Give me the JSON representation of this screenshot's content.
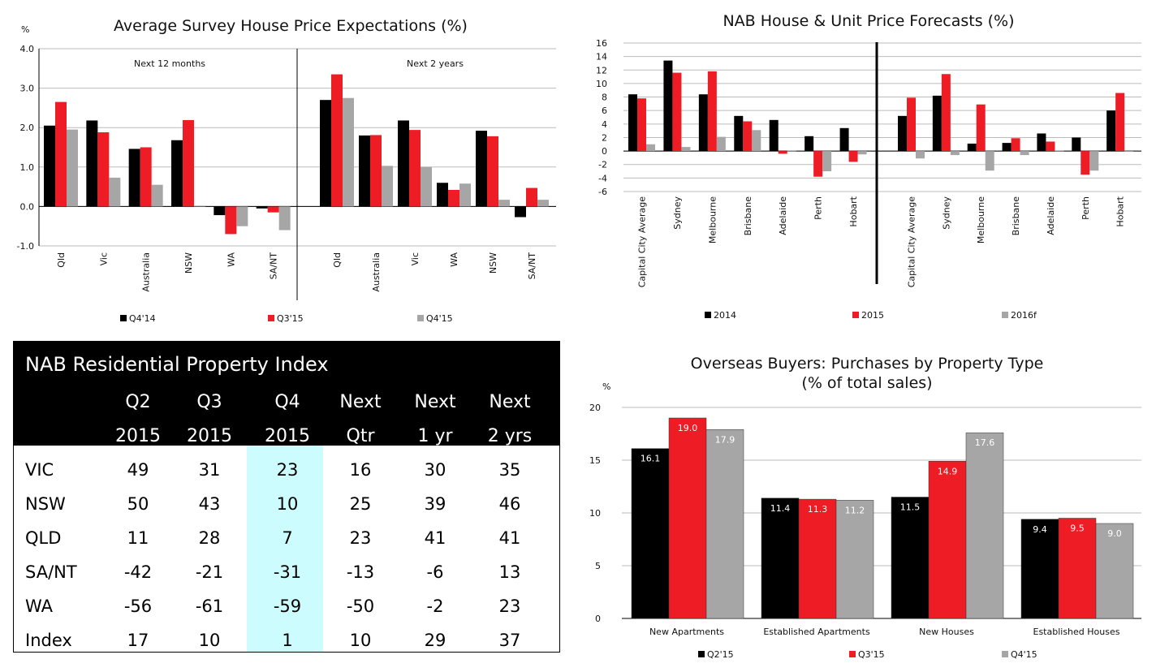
{
  "colors": {
    "black": "#000000",
    "red": "#ee1c25",
    "grey": "#a6a6a6",
    "highlight": "#ccfcfd"
  },
  "chart_data": [
    {
      "type": "bar",
      "title": "Average Survey House Price Expectations (%)",
      "unit_label": "%",
      "ylim": [
        -1.0,
        4.0
      ],
      "yticks": [
        "4.0",
        "3.0",
        "2.0",
        "1.0",
        "0.0",
        "-1.0"
      ],
      "ytick_values": [
        4,
        3,
        2,
        1,
        0,
        -1
      ],
      "legend_position": "bottom",
      "panels": [
        {
          "label": "Next 12 months",
          "categories": [
            "Qld",
            "Vic",
            "Australia",
            "NSW",
            "WA",
            "SA/NT"
          ],
          "series": [
            {
              "name": "Q4'14",
              "values": [
                2.05,
                2.18,
                1.46,
                1.68,
                -0.22,
                -0.05
              ]
            },
            {
              "name": "Q3'15",
              "values": [
                2.65,
                1.88,
                1.5,
                2.19,
                -0.7,
                -0.15
              ]
            },
            {
              "name": "Q4'15",
              "values": [
                1.95,
                0.73,
                0.55,
                0.02,
                -0.5,
                -0.6
              ]
            }
          ]
        },
        {
          "label": "Next 2 years",
          "categories": [
            "Qld",
            "Australia",
            "Vic",
            "WA",
            "NSW",
            "SA/NT"
          ],
          "series": [
            {
              "name": "Q4'14",
              "values": [
                2.7,
                1.8,
                2.18,
                0.6,
                1.92,
                -0.27
              ]
            },
            {
              "name": "Q3'15",
              "values": [
                3.35,
                1.81,
                1.94,
                0.42,
                1.78,
                0.47
              ]
            },
            {
              "name": "Q4'15",
              "values": [
                2.75,
                1.03,
                1.0,
                0.58,
                0.17,
                0.17
              ]
            }
          ]
        }
      ]
    },
    {
      "type": "bar",
      "title": "NAB House & Unit Price Forecasts (%)",
      "ylim": [
        -6,
        16
      ],
      "yticks": [
        "16",
        "14",
        "12",
        "10",
        "8",
        "6",
        "4",
        "2",
        "0",
        "-2",
        "-4",
        "-6"
      ],
      "ytick_values": [
        16,
        14,
        12,
        10,
        8,
        6,
        4,
        2,
        0,
        -2,
        -4,
        -6
      ],
      "legend_position": "bottom",
      "panels": [
        {
          "categories": [
            "Capital City Average",
            "Sydney",
            "Melbourne",
            "Brisbane",
            "Adelaide",
            "Perth",
            "Hobart"
          ],
          "series": [
            {
              "name": "2014",
              "values": [
                8.4,
                13.4,
                8.4,
                5.2,
                4.6,
                2.2,
                3.4
              ]
            },
            {
              "name": "2015",
              "values": [
                7.8,
                11.6,
                11.8,
                4.4,
                -0.4,
                -3.8,
                -1.6
              ]
            },
            {
              "name": "2016f",
              "values": [
                1.0,
                0.6,
                2.1,
                3.1,
                0.1,
                -3.0,
                -0.5
              ]
            }
          ]
        },
        {
          "categories": [
            "Capital City Average",
            "Sydney",
            "Melbourne",
            "Brisbane",
            "Adelaide",
            "Perth",
            "Hobart"
          ],
          "series": [
            {
              "name": "2014",
              "values": [
                5.2,
                8.2,
                1.1,
                1.2,
                2.6,
                2.0,
                6.0
              ]
            },
            {
              "name": "2015",
              "values": [
                7.9,
                11.4,
                6.9,
                1.9,
                1.4,
                -3.5,
                8.6
              ]
            },
            {
              "name": "2016f",
              "values": [
                -1.1,
                -0.6,
                -2.9,
                -0.6,
                0.1,
                -2.9,
                0.0
              ]
            }
          ]
        }
      ]
    },
    {
      "type": "bar",
      "title": "Overseas Buyers: Purchases by Property Type",
      "subtitle": "(% of total sales)",
      "unit_label": "%",
      "ylim": [
        0,
        20
      ],
      "yticks": [
        "20",
        "15",
        "10",
        "5",
        "0"
      ],
      "ytick_values": [
        20,
        15,
        10,
        5,
        0
      ],
      "legend_position": "bottom",
      "categories": [
        "New Apartments",
        "Established Apartments",
        "New Houses",
        "Established Houses"
      ],
      "series": [
        {
          "name": "Q2'15",
          "values": [
            16.1,
            11.4,
            11.5,
            9.4
          ],
          "labels": [
            "16.1",
            "11.4",
            "11.5",
            "9.4"
          ]
        },
        {
          "name": "Q3'15",
          "values": [
            19.0,
            11.3,
            14.9,
            9.5
          ],
          "labels": [
            "19.0",
            "11.3",
            "14.9",
            "9.5"
          ]
        },
        {
          "name": "Q4'15",
          "values": [
            17.9,
            11.2,
            17.6,
            9.0
          ],
          "labels": [
            "17.9",
            "11.2",
            "17.6",
            "9.0"
          ]
        }
      ]
    }
  ],
  "table": {
    "title": "NAB Residential Property Index",
    "columns": [
      {
        "top": "Q2",
        "bottom": "2015"
      },
      {
        "top": "Q3",
        "bottom": "2015"
      },
      {
        "top": "Q4",
        "bottom": "2015"
      },
      {
        "top": "Next",
        "bottom": "Qtr"
      },
      {
        "top": "Next",
        "bottom": "1 yr"
      },
      {
        "top": "Next",
        "bottom": "2 yrs"
      }
    ],
    "rows": [
      {
        "name": "VIC",
        "values": [
          "49",
          "31",
          "23",
          "16",
          "30",
          "35"
        ]
      },
      {
        "name": "NSW",
        "values": [
          "50",
          "43",
          "10",
          "25",
          "39",
          "46"
        ]
      },
      {
        "name": "QLD",
        "values": [
          "11",
          "28",
          "7",
          "23",
          "41",
          "41"
        ]
      },
      {
        "name": "SA/NT",
        "values": [
          "-42",
          "-21",
          "-31",
          "-13",
          "-6",
          "13"
        ]
      },
      {
        "name": "WA",
        "values": [
          "-56",
          "-61",
          "-59",
          "-50",
          "-2",
          "23"
        ]
      },
      {
        "name": "Index",
        "values": [
          "17",
          "10",
          "1",
          "10",
          "29",
          "37"
        ]
      }
    ]
  }
}
